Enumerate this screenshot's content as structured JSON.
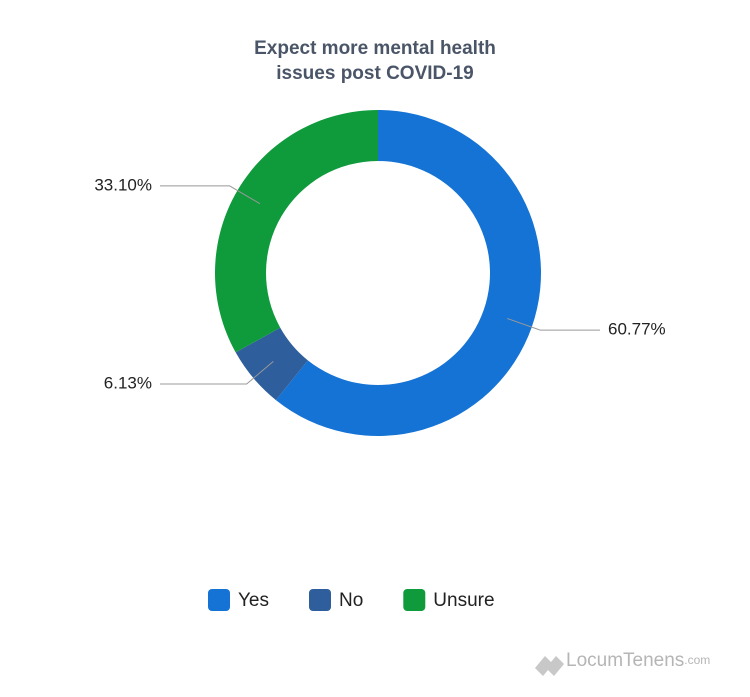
{
  "chart_data": {
    "type": "donut",
    "title": "Expect more mental health issues post COVID-19",
    "categories": [
      "Yes",
      "No",
      "Unsure"
    ],
    "values": [
      60.77,
      6.13,
      33.1
    ],
    "value_labels": [
      "60.77%",
      "6.13%",
      "33.10%"
    ],
    "colors": [
      "#1473d4",
      "#2f5e9c",
      "#0f9a3c"
    ],
    "legend": "bottom"
  },
  "watermark": {
    "name": "LocumTenens",
    "suffix": ".com"
  }
}
